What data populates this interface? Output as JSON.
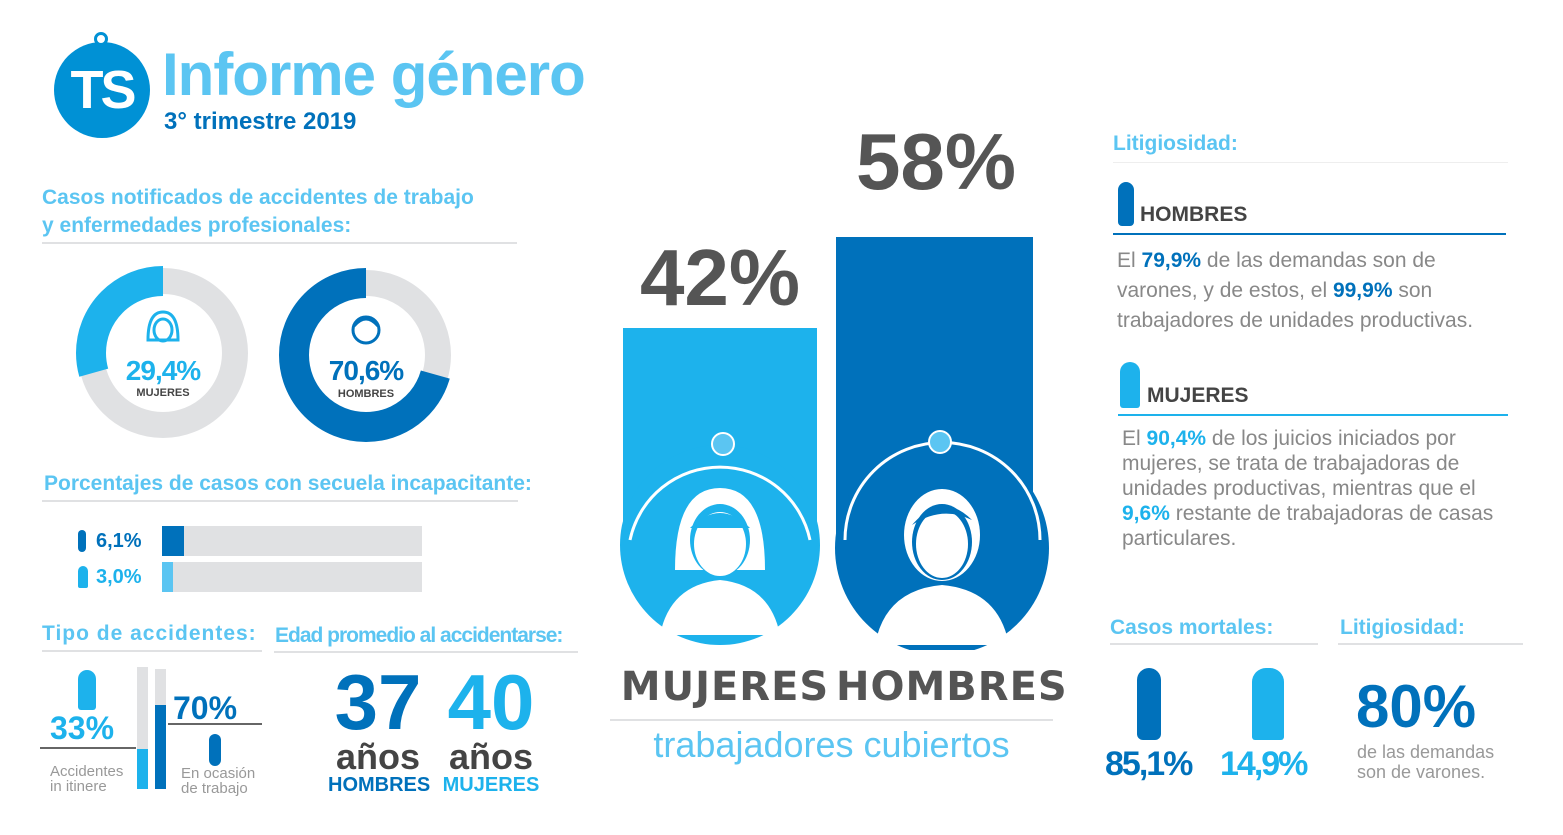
{
  "header": {
    "logo": "TS",
    "title": "Informe género",
    "subtitle": "3° trimestre 2019"
  },
  "colors": {
    "light_blue": "#1db2ec",
    "dark_blue": "#0071bb",
    "title_blue": "#5bc5f2",
    "gray": "#555555",
    "track": "#e0e1e3"
  },
  "casos": {
    "title_line1": "Casos notificados de accidentes de trabajo",
    "title_line2": "y enfermedades profesionales:",
    "mujeres": {
      "value": "29,4%",
      "label": "MUJERES",
      "pct": 29.4
    },
    "hombres": {
      "value": "70,6%",
      "label": "HOMBRES",
      "pct": 70.6
    }
  },
  "secuela": {
    "title": "Porcentajes de casos con secuela incapacitante:",
    "rows": [
      {
        "value": "6,1%",
        "pct": 6.1,
        "icon": "man-icon"
      },
      {
        "value": "3,0%",
        "pct": 3.0,
        "icon": "woman-icon"
      }
    ]
  },
  "tipo": {
    "title": "Tipo de accidentes:",
    "itinere": {
      "value": "33%",
      "label1": "Accidentes",
      "label2": "in itinere",
      "pct": 33
    },
    "trabajo": {
      "value": "70%",
      "label1": "En ocasión",
      "label2": "de trabajo",
      "pct": 70
    }
  },
  "edad": {
    "title": "Edad promedio al accidentarse:",
    "hombres": {
      "value": "37",
      "unit": "años",
      "label": "HOMBRES"
    },
    "mujeres": {
      "value": "40",
      "unit": "años",
      "label": "MUJERES"
    }
  },
  "cubiertos": {
    "mujeres": {
      "value": "42%",
      "label": "MUJERES",
      "pct": 42
    },
    "hombres": {
      "value": "58%",
      "label": "HOMBRES",
      "pct": 58
    },
    "caption": "trabajadores cubiertos"
  },
  "litigiosidad": {
    "title": "Litigiosidad:",
    "hombres": {
      "label": "HOMBRES",
      "t1": "El ",
      "v1": "79,9%",
      "t2": " de las demandas son de varones, y de estos, el ",
      "v2": "99,9%",
      "t3": " son trabajadores de unidades productivas."
    },
    "mujeres": {
      "label": "MUJERES",
      "t1": "El ",
      "v1": "90,4%",
      "t2": " de los juicios iniciados por mujeres, se trata de trabajadoras de unidades productivas, mientras que el ",
      "v2": "9,6%",
      "t3": " restante de trabajadoras de casas particulares."
    }
  },
  "mortales": {
    "title": "Casos mortales:",
    "hombres": {
      "value": "85,1%"
    },
    "mujeres": {
      "value": "14,9%"
    }
  },
  "litig2": {
    "title": "Litigiosidad:",
    "value": "80%",
    "line1": "de las demandas",
    "line2": "son de varones."
  },
  "chart_data": [
    {
      "type": "pie",
      "title": "Casos notificados de accidentes de trabajo y enfermedades profesionales:",
      "categories": [
        "MUJERES",
        "HOMBRES"
      ],
      "values": [
        29.4,
        70.6
      ]
    },
    {
      "type": "bar",
      "title": "Porcentajes de casos con secuela incapacitante:",
      "categories": [
        "Hombres",
        "Mujeres"
      ],
      "values": [
        6.1,
        3.0
      ]
    },
    {
      "type": "bar",
      "title": "Tipo de accidentes:",
      "categories": [
        "Accidentes in itinere",
        "En ocasión de trabajo"
      ],
      "values": [
        33,
        70
      ]
    },
    {
      "type": "bar",
      "title": "trabajadores cubiertos",
      "categories": [
        "MUJERES",
        "HOMBRES"
      ],
      "values": [
        42,
        58
      ]
    },
    {
      "type": "bar",
      "title": "Casos mortales:",
      "categories": [
        "Hombres",
        "Mujeres"
      ],
      "values": [
        85.1,
        14.9
      ]
    }
  ]
}
